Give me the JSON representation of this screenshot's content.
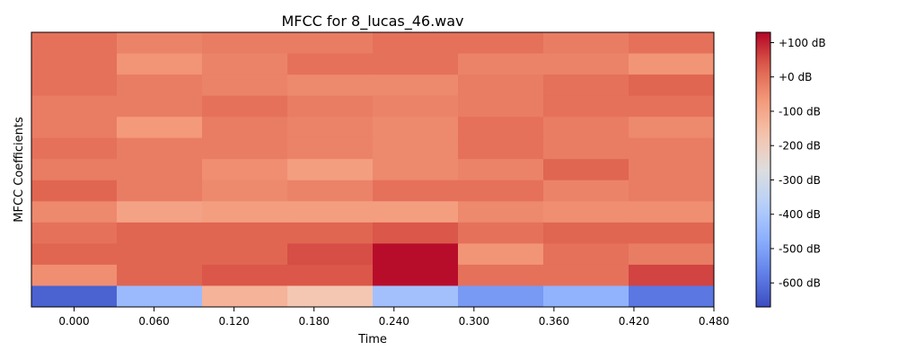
{
  "chart_data": {
    "type": "heatmap",
    "title": "MFCC for 8_lucas_46.wav",
    "xlabel": "Time",
    "ylabel": "MFCC Coefficients",
    "x_ticks": [
      "0.000",
      "0.060",
      "0.120",
      "0.180",
      "0.240",
      "0.300",
      "0.360",
      "0.420",
      "0.480"
    ],
    "n_frames": 8,
    "n_coefficients": 13,
    "colormap": "coolwarm",
    "zlim": [
      -670,
      130
    ],
    "colorbar_ticks": [
      {
        "value": 100,
        "label": "+100 dB"
      },
      {
        "value": 0,
        "label": "+0 dB"
      },
      {
        "value": -100,
        "label": "-100 dB"
      },
      {
        "value": -200,
        "label": "-200 dB"
      },
      {
        "value": -300,
        "label": "-300 dB"
      },
      {
        "value": -400,
        "label": "-400 dB"
      },
      {
        "value": -500,
        "label": "-500 dB"
      },
      {
        "value": -600,
        "label": "-600 dB"
      }
    ],
    "values_top_to_bottom": [
      [
        0,
        -30,
        -20,
        -20,
        0,
        0,
        -20,
        0
      ],
      [
        0,
        -60,
        -30,
        0,
        0,
        -30,
        -30,
        -60
      ],
      [
        0,
        -20,
        -30,
        -40,
        -40,
        -20,
        0,
        20
      ],
      [
        -20,
        -20,
        0,
        -20,
        -30,
        -20,
        0,
        0
      ],
      [
        -20,
        -70,
        -20,
        -30,
        -40,
        0,
        -20,
        -40
      ],
      [
        0,
        -20,
        -20,
        -30,
        -40,
        0,
        -20,
        -20
      ],
      [
        -20,
        -20,
        -50,
        -80,
        -40,
        -30,
        20,
        -20
      ],
      [
        20,
        -20,
        -40,
        -30,
        0,
        0,
        -30,
        -20
      ],
      [
        -40,
        -90,
        -80,
        -80,
        -80,
        -40,
        -50,
        -50
      ],
      [
        0,
        20,
        20,
        20,
        40,
        0,
        20,
        20
      ],
      [
        20,
        20,
        20,
        50,
        120,
        -60,
        0,
        -20
      ],
      [
        -50,
        20,
        40,
        40,
        120,
        0,
        0,
        60
      ],
      [
        -630,
        -440,
        -130,
        -180,
        -420,
        -520,
        -460,
        -590
      ]
    ]
  }
}
